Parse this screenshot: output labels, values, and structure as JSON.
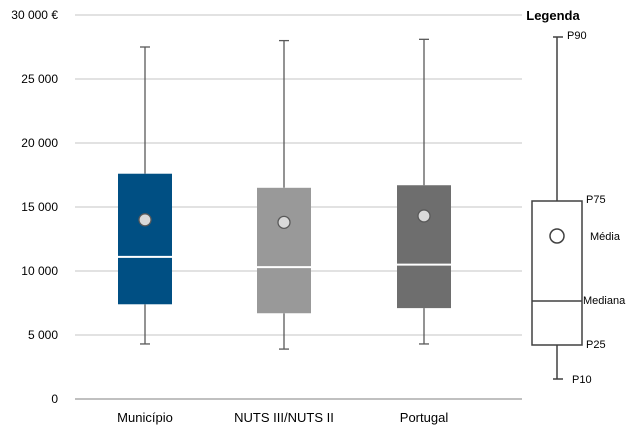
{
  "chart_data": {
    "type": "box",
    "categories": [
      "Município",
      "NUTS III/NUTS II",
      "Portugal"
    ],
    "series": [
      {
        "category": "Município",
        "p10": 4300,
        "p25": 7400,
        "median": 11100,
        "p75": 17600,
        "p90": 27500,
        "mean": 14000,
        "color": "#004f83"
      },
      {
        "category": "NUTS III/NUTS II",
        "p10": 3900,
        "p25": 6700,
        "median": 10300,
        "p75": 16500,
        "p90": 28000,
        "mean": 13800,
        "color": "#999999"
      },
      {
        "category": "Portugal",
        "p10": 4300,
        "p25": 7100,
        "median": 10500,
        "p75": 16700,
        "p90": 28100,
        "mean": 14300,
        "color": "#6e6e6e"
      }
    ],
    "ylim": [
      0,
      30000
    ],
    "yticks": [
      {
        "value": 0,
        "label": "0"
      },
      {
        "value": 5000,
        "label": "5 000"
      },
      {
        "value": 10000,
        "label": "10 000"
      },
      {
        "value": 15000,
        "label": "15 000"
      },
      {
        "value": 20000,
        "label": "20 000"
      },
      {
        "value": 25000,
        "label": "25 000"
      },
      {
        "value": 30000,
        "label": "30 000 €"
      }
    ],
    "grid": true,
    "legend": {
      "title": "Legenda",
      "labels": {
        "p90": "P90",
        "p75": "P75",
        "mean": "Média",
        "median": "Mediana",
        "p25": "P25",
        "p10": "P10"
      }
    }
  }
}
